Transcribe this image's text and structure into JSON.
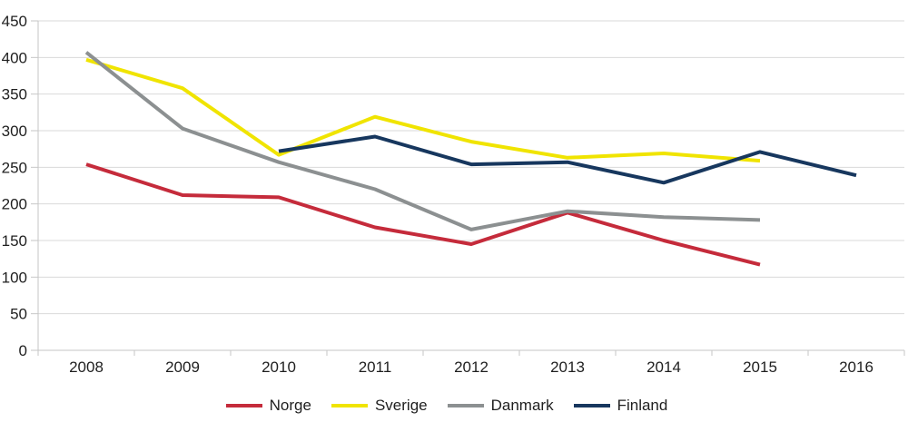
{
  "chart_data": {
    "type": "line",
    "title": "",
    "xlabel": "",
    "ylabel": "",
    "ylim": [
      0,
      450
    ],
    "ytick_step": 50,
    "grid": true,
    "legend_position": "bottom",
    "x_tick_labels": [
      "2008",
      "2009",
      "2010",
      "2011",
      "2012",
      "2013",
      "2014",
      "2015",
      "2016"
    ],
    "y_tick_labels": [
      "0",
      "50",
      "100",
      "150",
      "200",
      "250",
      "300",
      "350",
      "400",
      "450"
    ],
    "series": [
      {
        "name": "Norge",
        "color": "#c52b3b",
        "values": [
          254,
          212,
          209,
          168,
          145,
          188,
          150,
          117,
          null
        ]
      },
      {
        "name": "Sverige",
        "color": "#f0e400",
        "values": [
          397,
          358,
          267,
          319,
          285,
          263,
          269,
          259,
          null
        ]
      },
      {
        "name": "Danmark",
        "color": "#8c9091",
        "values": [
          407,
          303,
          257,
          220,
          165,
          190,
          182,
          178,
          null
        ]
      },
      {
        "name": "Finland",
        "color": "#17375e",
        "values": [
          null,
          null,
          272,
          292,
          254,
          257,
          229,
          271,
          239
        ]
      }
    ],
    "colors": {
      "grid": "#dadada",
      "axis": "#c6c6c6",
      "text": "#1f1f1f",
      "background": "#ffffff"
    }
  }
}
